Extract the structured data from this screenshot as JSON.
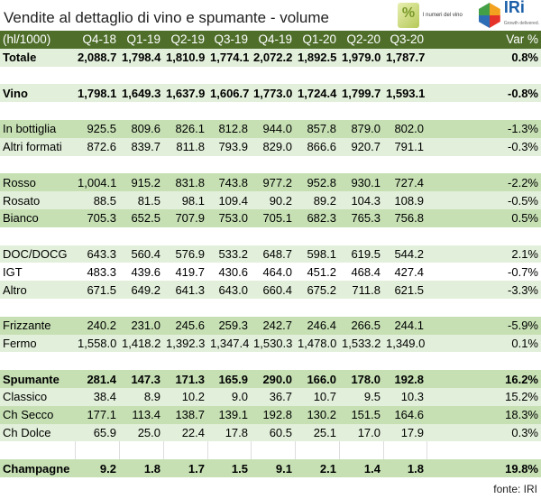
{
  "title": "Vendite al dettaglio di vino e spumante - volume",
  "logos": {
    "numeri": "I numeri del vino",
    "iri": "IRi",
    "iri_tag": "Growth delivered."
  },
  "header": [
    "(hl/1000)",
    "Q4-18",
    "Q1-19",
    "Q2-19",
    "Q3-19",
    "Q4-19",
    "Q1-20",
    "Q2-20",
    "Q3-20",
    "Var %"
  ],
  "rows": [
    {
      "label": "Totale",
      "values": [
        "2,088.7",
        "1,798.4",
        "1,810.9",
        "1,774.1",
        "2,072.2",
        "1,892.5",
        "1,979.0",
        "1,787.7",
        "0.8%"
      ]
    },
    {
      "label": "Vino",
      "values": [
        "1,798.1",
        "1,649.3",
        "1,637.9",
        "1,606.7",
        "1,773.0",
        "1,724.4",
        "1,799.7",
        "1,593.1",
        "-0.8%"
      ]
    },
    {
      "label": "In bottiglia",
      "values": [
        "925.5",
        "809.6",
        "826.1",
        "812.8",
        "944.0",
        "857.8",
        "879.0",
        "802.0",
        "-1.3%"
      ]
    },
    {
      "label": "Altri formati",
      "values": [
        "872.6",
        "839.7",
        "811.8",
        "793.9",
        "829.0",
        "866.6",
        "920.7",
        "791.1",
        "-0.3%"
      ]
    },
    {
      "label": "Rosso",
      "values": [
        "1,004.1",
        "915.2",
        "831.8",
        "743.8",
        "977.2",
        "952.8",
        "930.1",
        "727.4",
        "-2.2%"
      ]
    },
    {
      "label": "Rosato",
      "values": [
        "88.5",
        "81.5",
        "98.1",
        "109.4",
        "90.2",
        "89.2",
        "104.3",
        "108.9",
        "-0.5%"
      ]
    },
    {
      "label": "Bianco",
      "values": [
        "705.3",
        "652.5",
        "707.9",
        "753.0",
        "705.1",
        "682.3",
        "765.3",
        "756.8",
        "0.5%"
      ]
    },
    {
      "label": "DOC/DOCG",
      "values": [
        "643.3",
        "560.4",
        "576.9",
        "533.2",
        "648.7",
        "598.1",
        "619.5",
        "544.2",
        "2.1%"
      ]
    },
    {
      "label": "IGT",
      "values": [
        "483.3",
        "439.6",
        "419.7",
        "430.6",
        "464.0",
        "451.2",
        "468.4",
        "427.4",
        "-0.7%"
      ]
    },
    {
      "label": "Altro",
      "values": [
        "671.5",
        "649.2",
        "641.3",
        "643.0",
        "660.4",
        "675.2",
        "711.8",
        "621.5",
        "-3.3%"
      ]
    },
    {
      "label": "Frizzante",
      "values": [
        "240.2",
        "231.0",
        "245.6",
        "259.3",
        "242.7",
        "246.4",
        "266.5",
        "244.1",
        "-5.9%"
      ]
    },
    {
      "label": "Fermo",
      "values": [
        "1,558.0",
        "1,418.2",
        "1,392.3",
        "1,347.4",
        "1,530.3",
        "1,478.0",
        "1,533.2",
        "1,349.0",
        "0.1%"
      ]
    },
    {
      "label": "Spumante",
      "values": [
        "281.4",
        "147.3",
        "171.3",
        "165.9",
        "290.0",
        "166.0",
        "178.0",
        "192.8",
        "16.2%"
      ]
    },
    {
      "label": "Classico",
      "values": [
        "38.4",
        "8.9",
        "10.2",
        "9.0",
        "36.7",
        "10.7",
        "9.5",
        "10.3",
        "15.2%"
      ]
    },
    {
      "label": "Ch Secco",
      "values": [
        "177.1",
        "113.4",
        "138.7",
        "139.1",
        "192.8",
        "130.2",
        "151.5",
        "164.6",
        "18.3%"
      ]
    },
    {
      "label": "Ch Dolce",
      "values": [
        "65.9",
        "25.0",
        "22.4",
        "17.8",
        "60.5",
        "25.1",
        "17.0",
        "17.9",
        "0.3%"
      ]
    },
    {
      "label": "Champagne",
      "values": [
        "9.2",
        "1.8",
        "1.7",
        "1.5",
        "9.1",
        "2.1",
        "1.4",
        "1.8",
        "19.8%"
      ]
    }
  ],
  "source": "fonte: IRI"
}
